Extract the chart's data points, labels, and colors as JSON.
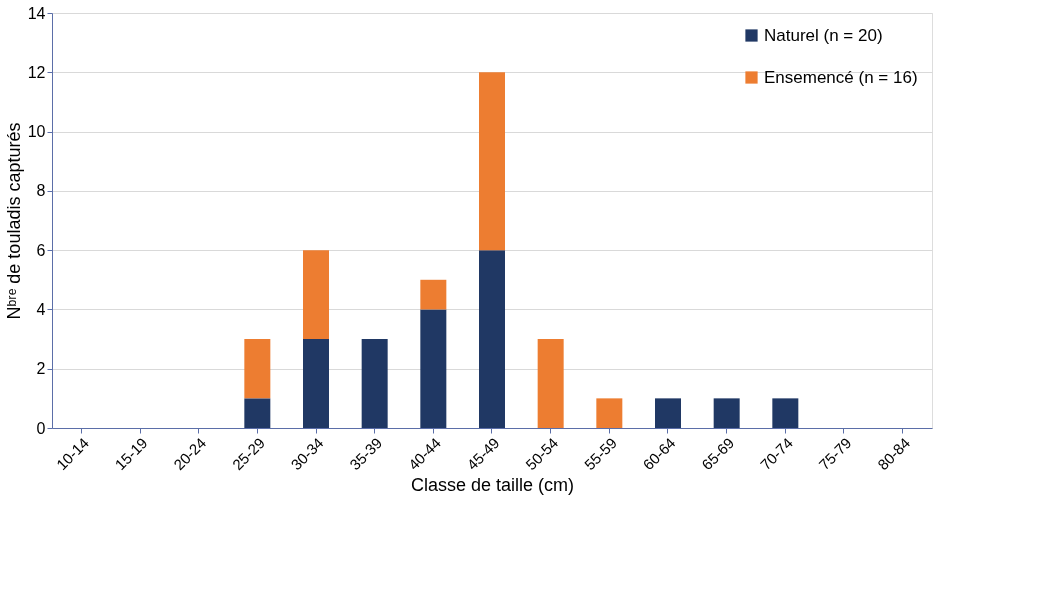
{
  "chart_data": {
    "type": "bar",
    "stacked": true,
    "xlabel": "Classe de taille (cm)",
    "ylabel": "Nᵇʳᵉ de touladis capturés",
    "categories": [
      "10-14",
      "15-19",
      "20-24",
      "25-29",
      "30-34",
      "35-39",
      "40-44",
      "45-49",
      "50-54",
      "55-59",
      "60-64",
      "65-69",
      "70-74",
      "75-79",
      "80-84"
    ],
    "series": [
      {
        "name": "Naturel (n = 20)",
        "color": "#203864",
        "values": [
          0,
          0,
          0,
          1,
          3,
          3,
          4,
          6,
          0,
          0,
          1,
          1,
          1,
          0,
          0
        ]
      },
      {
        "name": "Ensemencé (n = 16)",
        "color": "#ed7d31",
        "values": [
          0,
          0,
          0,
          2,
          3,
          0,
          1,
          6,
          3,
          1,
          0,
          0,
          0,
          0,
          0
        ]
      }
    ],
    "ylim": [
      0,
      14
    ],
    "yticks": [
      0,
      2,
      4,
      6,
      8,
      10,
      12,
      14
    ],
    "grid": "y",
    "legend": "top right"
  }
}
